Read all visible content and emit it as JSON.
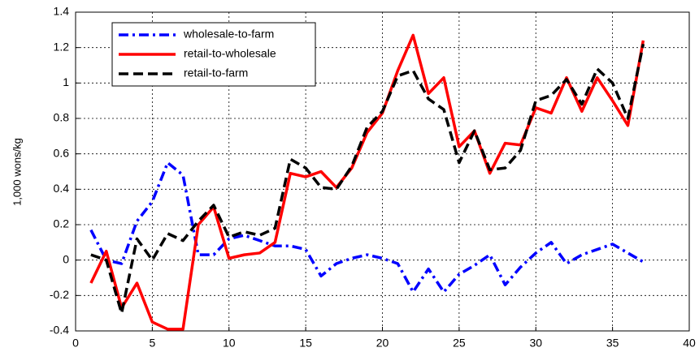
{
  "chart_data": {
    "type": "line",
    "y_label": "1,000 wons/kg",
    "x": [
      1,
      2,
      3,
      4,
      5,
      6,
      7,
      8,
      9,
      10,
      11,
      12,
      13,
      14,
      15,
      16,
      17,
      18,
      19,
      20,
      21,
      22,
      23,
      24,
      25,
      26,
      27,
      28,
      29,
      30,
      31,
      32,
      33,
      34,
      35,
      36,
      37
    ],
    "series": [
      {
        "name": "wholesale-to-farm",
        "color": "#0000ff",
        "style": "dashdot",
        "values": [
          0.17,
          0.0,
          -0.02,
          0.22,
          0.33,
          0.55,
          0.48,
          0.03,
          0.03,
          0.12,
          0.14,
          0.11,
          0.08,
          0.08,
          0.06,
          -0.09,
          -0.02,
          0.01,
          0.03,
          0.01,
          -0.02,
          -0.18,
          -0.05,
          -0.18,
          -0.08,
          -0.03,
          0.03,
          -0.14,
          -0.04,
          0.04,
          0.1,
          -0.02,
          0.03,
          0.06,
          0.09,
          0.04,
          -0.01
        ]
      },
      {
        "name": "retail-to-wholesale",
        "color": "#ff0000",
        "style": "solid",
        "values": [
          -0.13,
          0.05,
          -0.27,
          -0.13,
          -0.35,
          -0.39,
          -0.39,
          0.2,
          0.3,
          0.01,
          0.03,
          0.04,
          0.1,
          0.49,
          0.47,
          0.5,
          0.41,
          0.52,
          0.72,
          0.83,
          1.07,
          1.27,
          0.94,
          1.03,
          0.64,
          0.73,
          0.49,
          0.66,
          0.65,
          0.86,
          0.83,
          1.03,
          0.84,
          1.03,
          0.9,
          0.76,
          1.24
        ]
      },
      {
        "name": "retail-to-farm",
        "color": "#000000",
        "style": "dashed",
        "values": [
          0.03,
          0.0,
          -0.3,
          0.12,
          0.0,
          0.15,
          0.11,
          0.22,
          0.31,
          0.13,
          0.16,
          0.14,
          0.18,
          0.57,
          0.52,
          0.41,
          0.4,
          0.53,
          0.75,
          0.84,
          1.04,
          1.07,
          0.91,
          0.85,
          0.55,
          0.73,
          0.51,
          0.52,
          0.62,
          0.9,
          0.93,
          1.02,
          0.88,
          1.08,
          1.0,
          0.8,
          1.22
        ]
      }
    ],
    "xlim": [
      0,
      40
    ],
    "xticks": [
      0,
      5,
      10,
      15,
      20,
      25,
      30,
      35,
      40
    ],
    "ylim": [
      -0.4,
      1.4
    ],
    "yticks": [
      -0.4,
      -0.2,
      0,
      0.2,
      0.4,
      0.6,
      0.8,
      1,
      1.2,
      1.4
    ],
    "grid": true,
    "legend": "upper left"
  }
}
